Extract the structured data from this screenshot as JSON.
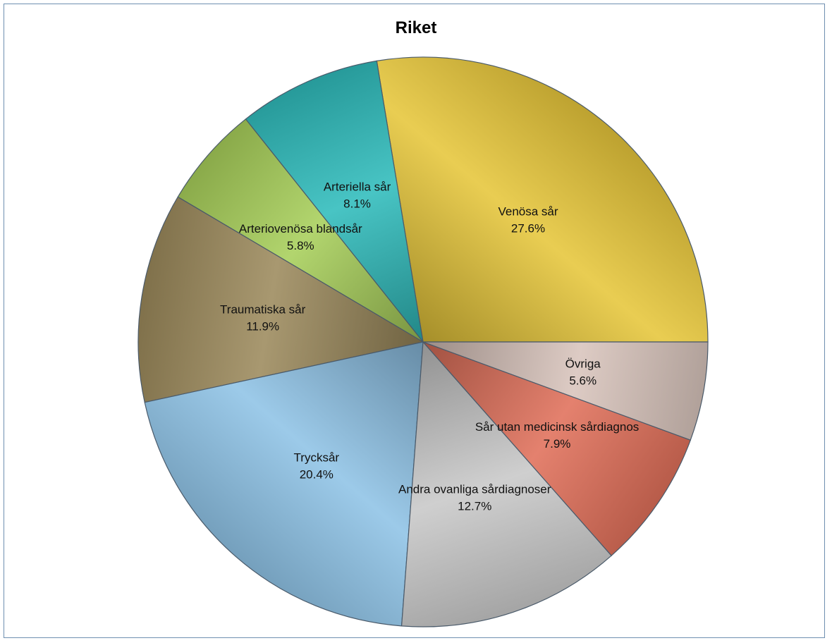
{
  "chart_data": {
    "type": "pie",
    "title": "Riket",
    "start_angle_deg": 0,
    "direction": "counterclockwise",
    "slices": [
      {
        "label": "Venösa sår",
        "pct_label": "27.6%",
        "value": 27.6,
        "color": "#e6c63a"
      },
      {
        "label": "Arteriella sår",
        "pct_label": "8.1%",
        "value": 8.1,
        "color": "#2fbcbc"
      },
      {
        "label": "Arteriovenösa blandsår",
        "pct_label": "5.8%",
        "value": 5.8,
        "color": "#a8cf5a"
      },
      {
        "label": "Traumatiska sår",
        "pct_label": "11.9%",
        "value": 11.9,
        "color": "#9c8a5c"
      },
      {
        "label": "Trycksår",
        "pct_label": "20.4%",
        "value": 20.4,
        "color": "#8fc3e6"
      },
      {
        "label": "Andra ovanliga sårdiagnoser",
        "pct_label": "12.7%",
        "value": 12.7,
        "color": "#c9c9c9"
      },
      {
        "label": "Sår utan medicinsk sårdiagnos",
        "pct_label": "7.9%",
        "value": 7.9,
        "color": "#e0705a"
      },
      {
        "label": "Övriga",
        "pct_label": "5.6%",
        "value": 5.6,
        "color": "#d8c4bc"
      }
    ]
  }
}
